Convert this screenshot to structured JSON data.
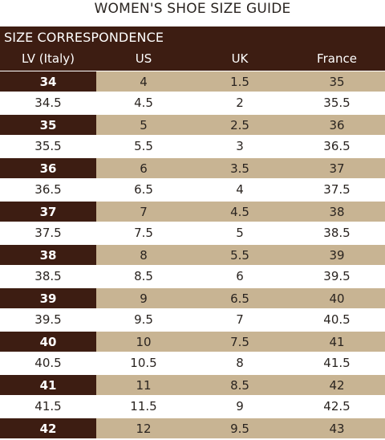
{
  "title": "WOMEN'S SHOE SIZE GUIDE",
  "table": {
    "section_title": "SIZE CORRESPONDENCE",
    "columns": [
      "LV (Italy)",
      "US",
      "UK",
      "France"
    ],
    "colors": {
      "header_band": "#3d1d12",
      "highlight_row": "#c8b493",
      "plain_row": "#ffffff"
    },
    "rows": [
      [
        "34",
        "4",
        "1.5",
        "35"
      ],
      [
        "34.5",
        "4.5",
        "2",
        "35.5"
      ],
      [
        "35",
        "5",
        "2.5",
        "36"
      ],
      [
        "35.5",
        "5.5",
        "3",
        "36.5"
      ],
      [
        "36",
        "6",
        "3.5",
        "37"
      ],
      [
        "36.5",
        "6.5",
        "4",
        "37.5"
      ],
      [
        "37",
        "7",
        "4.5",
        "38"
      ],
      [
        "37.5",
        "7.5",
        "5",
        "38.5"
      ],
      [
        "38",
        "8",
        "5.5",
        "39"
      ],
      [
        "38.5",
        "8.5",
        "6",
        "39.5"
      ],
      [
        "39",
        "9",
        "6.5",
        "40"
      ],
      [
        "39.5",
        "9.5",
        "7",
        "40.5"
      ],
      [
        "40",
        "10",
        "7.5",
        "41"
      ],
      [
        "40.5",
        "10.5",
        "8",
        "41.5"
      ],
      [
        "41",
        "11",
        "8.5",
        "42"
      ],
      [
        "41.5",
        "11.5",
        "9",
        "42.5"
      ],
      [
        "42",
        "12",
        "9.5",
        "43"
      ]
    ]
  }
}
